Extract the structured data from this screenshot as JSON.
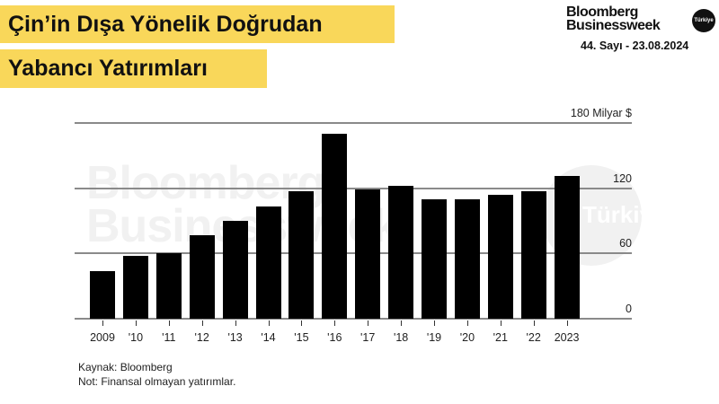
{
  "header": {
    "title_line1": "Çin’in Dışa Yönelik Doğrudan",
    "title_line2": "Yabancı Yatırımları",
    "title_bg_color": "#f9d75a"
  },
  "brand": {
    "name_line1": "Bloomberg",
    "name_line2": "Businessweek",
    "badge": "Türkiye",
    "issue": "44. Sayı - 23.08.2024"
  },
  "watermark": {
    "line1": "Bloomberg",
    "line2": "Businessweek",
    "circle_text": "Türkiye"
  },
  "footer": {
    "source": "Kaynak: Bloomberg",
    "note": "Not: Finansal olmayan yatırımlar."
  },
  "chart_data": {
    "type": "bar",
    "title": "Çin’in Dışa Yönelik Doğrudan Yabancı Yatırımları",
    "xlabel": "",
    "ylabel": "Milyar $",
    "ylim": [
      0,
      180
    ],
    "y_ticks": [
      {
        "value": 180,
        "label": "180 Milyar $"
      },
      {
        "value": 120,
        "label": "120"
      },
      {
        "value": 60,
        "label": "60"
      },
      {
        "value": 0,
        "label": "0"
      }
    ],
    "grid": true,
    "legend": null,
    "bar_color": "#000000",
    "categories": [
      "2009",
      "'10",
      "'11",
      "'12",
      "'13",
      "'14",
      "'15",
      "'16",
      "'17",
      "'18",
      "'19",
      "'20",
      "'21",
      "'22",
      "2023"
    ],
    "values": [
      44,
      58,
      60,
      77,
      90,
      103,
      117,
      170,
      119,
      122,
      110,
      110,
      114,
      117,
      131
    ],
    "source": "Kaynak: Bloomberg",
    "note": "Not: Finansal olmayan yatırımlar."
  }
}
